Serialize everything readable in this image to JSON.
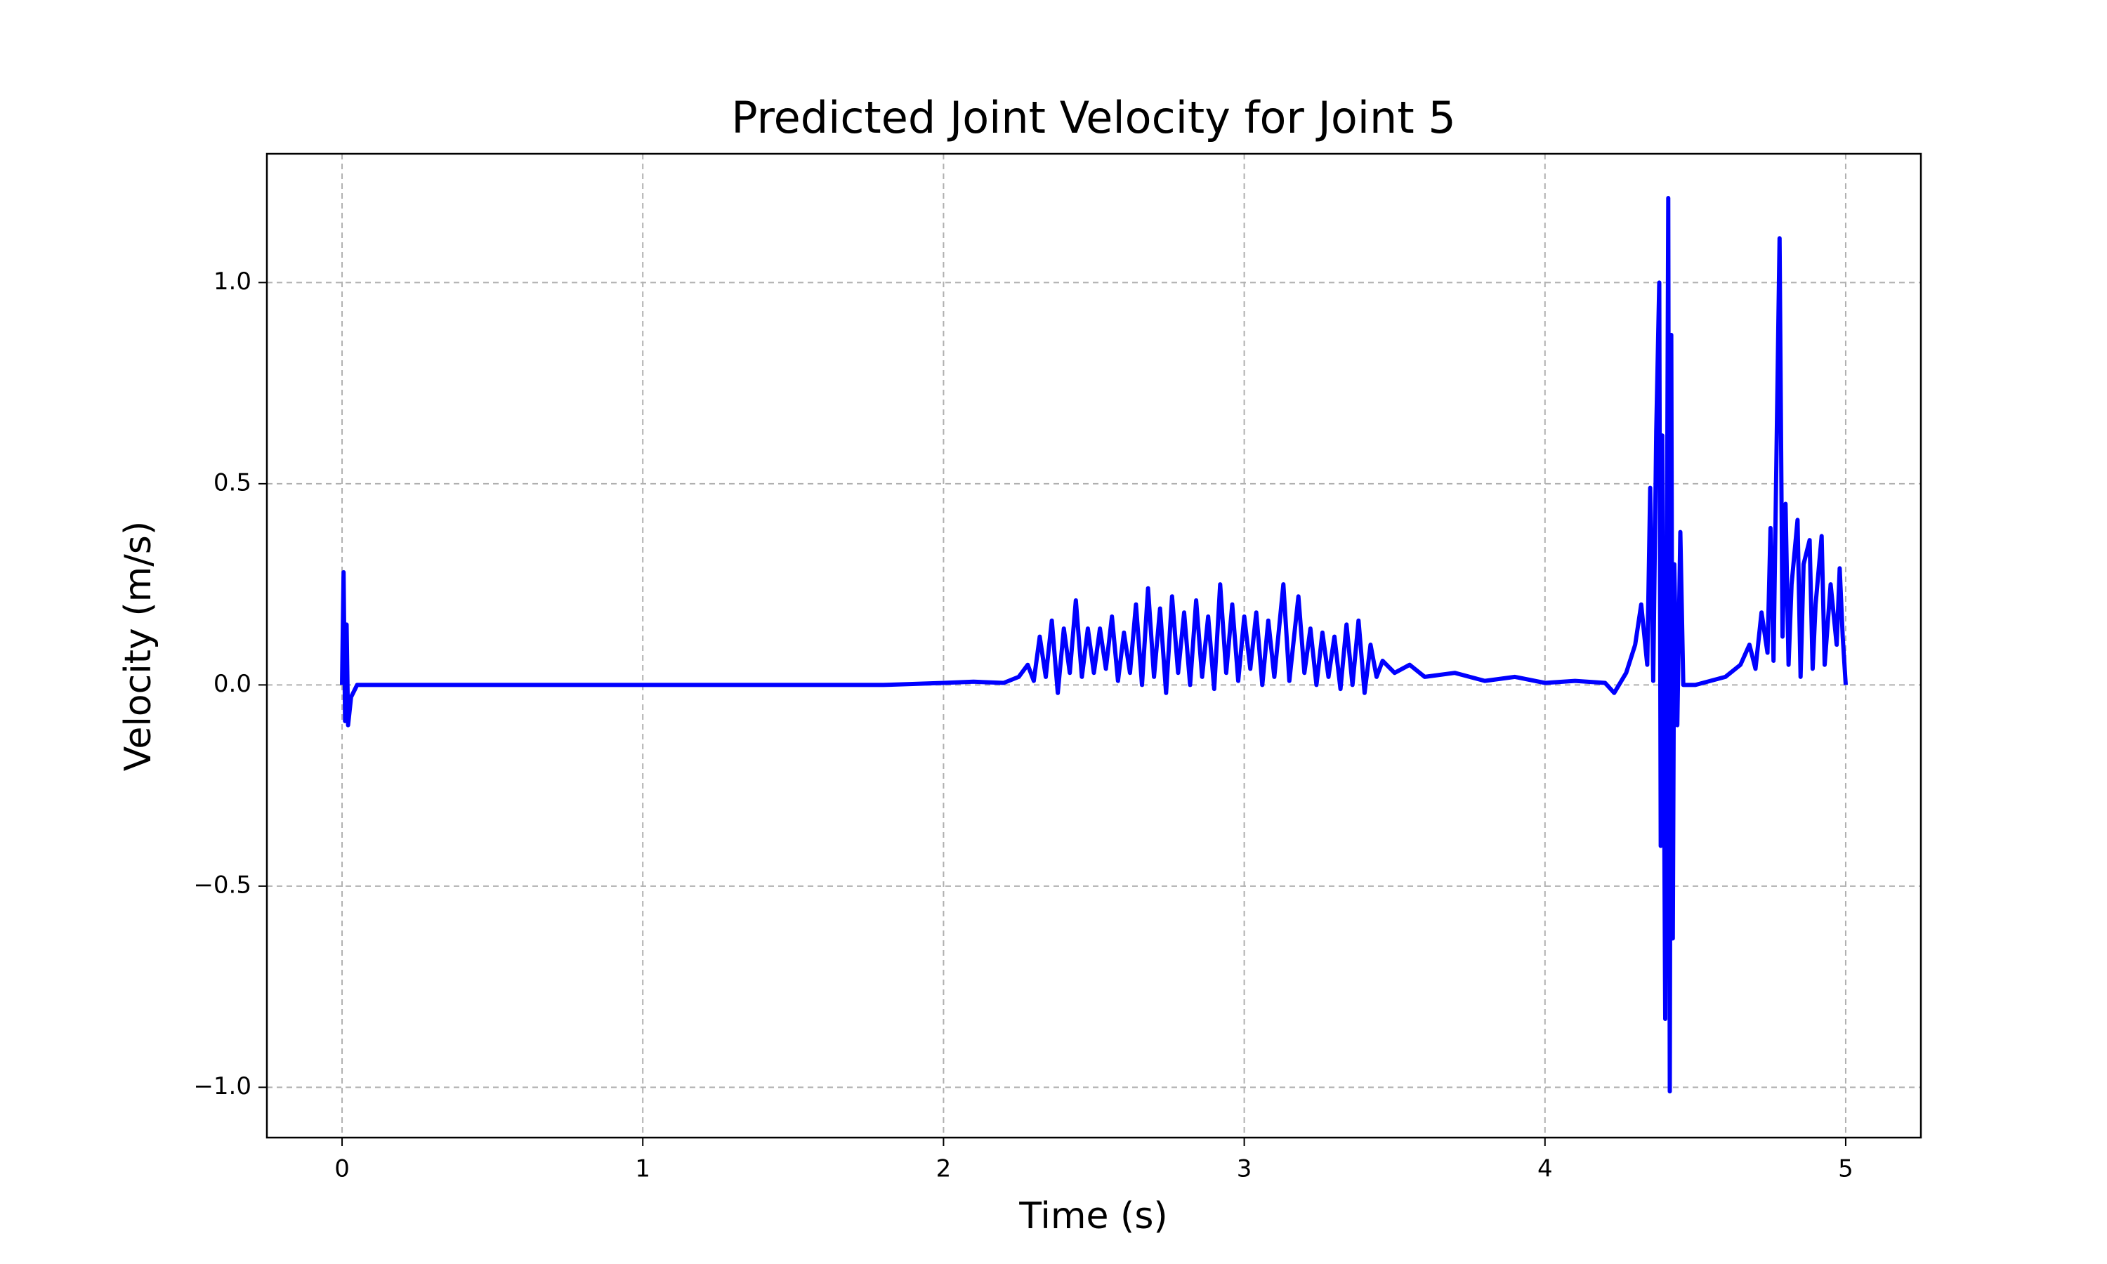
{
  "chart_data": {
    "type": "line",
    "title": "Predicted Joint Velocity for Joint 5",
    "x_label": "Time (s)",
    "y_label": "Velocity (m/s)",
    "x": [
      0,
      0.005,
      0.01,
      0.015,
      0.02,
      0.03,
      0.05,
      1.8,
      2.0,
      2.1,
      2.2,
      2.25,
      2.28,
      2.3,
      2.32,
      2.34,
      2.36,
      2.38,
      2.4,
      2.42,
      2.44,
      2.46,
      2.48,
      2.5,
      2.52,
      2.54,
      2.56,
      2.58,
      2.6,
      2.62,
      2.64,
      2.66,
      2.68,
      2.7,
      2.72,
      2.74,
      2.76,
      2.78,
      2.8,
      2.82,
      2.84,
      2.86,
      2.88,
      2.9,
      2.92,
      2.94,
      2.96,
      2.98,
      3.0,
      3.02,
      3.04,
      3.06,
      3.08,
      3.1,
      3.13,
      3.15,
      3.18,
      3.2,
      3.22,
      3.24,
      3.26,
      3.28,
      3.3,
      3.32,
      3.34,
      3.36,
      3.38,
      3.4,
      3.42,
      3.44,
      3.46,
      3.5,
      3.55,
      3.6,
      3.7,
      3.8,
      3.9,
      4.0,
      4.1,
      4.2,
      4.23,
      4.27,
      4.3,
      4.32,
      4.34,
      4.35,
      4.36,
      4.37,
      4.38,
      4.385,
      4.39,
      4.4,
      4.41,
      4.415,
      4.42,
      4.425,
      4.43,
      4.44,
      4.45,
      4.46,
      4.5,
      4.6,
      4.65,
      4.68,
      4.7,
      4.72,
      4.74,
      4.75,
      4.76,
      4.78,
      4.79,
      4.8,
      4.81,
      4.82,
      4.84,
      4.85,
      4.86,
      4.88,
      4.89,
      4.9,
      4.92,
      4.93,
      4.95,
      4.97,
      4.98,
      4.99,
      5.0
    ],
    "series": [
      {
        "color": "#0000ff",
        "values": [
          0,
          0.28,
          -0.09,
          0.15,
          -0.1,
          -0.03,
          0,
          0,
          0.005,
          0.008,
          0.005,
          0.02,
          0.05,
          0.01,
          0.12,
          0.02,
          0.16,
          -0.02,
          0.14,
          0.03,
          0.21,
          0.02,
          0.14,
          0.03,
          0.14,
          0.04,
          0.17,
          0.01,
          0.13,
          0.03,
          0.2,
          0.0,
          0.24,
          0.02,
          0.19,
          -0.02,
          0.22,
          0.03,
          0.18,
          0.0,
          0.21,
          0.02,
          0.17,
          -0.01,
          0.25,
          0.03,
          0.2,
          0.01,
          0.17,
          0.04,
          0.18,
          0.0,
          0.16,
          0.02,
          0.25,
          0.01,
          0.22,
          0.03,
          0.14,
          0.0,
          0.13,
          0.02,
          0.12,
          -0.01,
          0.15,
          0.0,
          0.16,
          -0.02,
          0.1,
          0.02,
          0.06,
          0.03,
          0.05,
          0.02,
          0.03,
          0.01,
          0.02,
          0.005,
          0.01,
          0.005,
          -0.02,
          0.03,
          0.1,
          0.2,
          0.05,
          0.49,
          0.01,
          0.63,
          1.0,
          -0.4,
          0.62,
          -0.83,
          1.21,
          -1.01,
          0.87,
          -0.63,
          0.3,
          -0.1,
          0.38,
          0.0,
          0.0,
          0.02,
          0.05,
          0.1,
          0.04,
          0.18,
          0.08,
          0.39,
          0.06,
          1.11,
          0.12,
          0.45,
          0.05,
          0.25,
          0.41,
          0.02,
          0.3,
          0.36,
          0.04,
          0.2,
          0.37,
          0.05,
          0.25,
          0.1,
          0.29,
          0.12,
          0.0
        ]
      }
    ],
    "xlim": [
      -0.25,
      5.25
    ],
    "ylim": [
      -1.125,
      1.32
    ],
    "xticks": [
      0,
      1,
      2,
      3,
      4,
      5
    ],
    "yticks": [
      {
        "value": -1.0,
        "label": "−1.0"
      },
      {
        "value": -0.5,
        "label": "−0.5"
      },
      {
        "value": 0.0,
        "label": "0.0"
      },
      {
        "value": 0.5,
        "label": "0.5"
      },
      {
        "value": 1.0,
        "label": "1.0"
      }
    ],
    "grid": true
  }
}
